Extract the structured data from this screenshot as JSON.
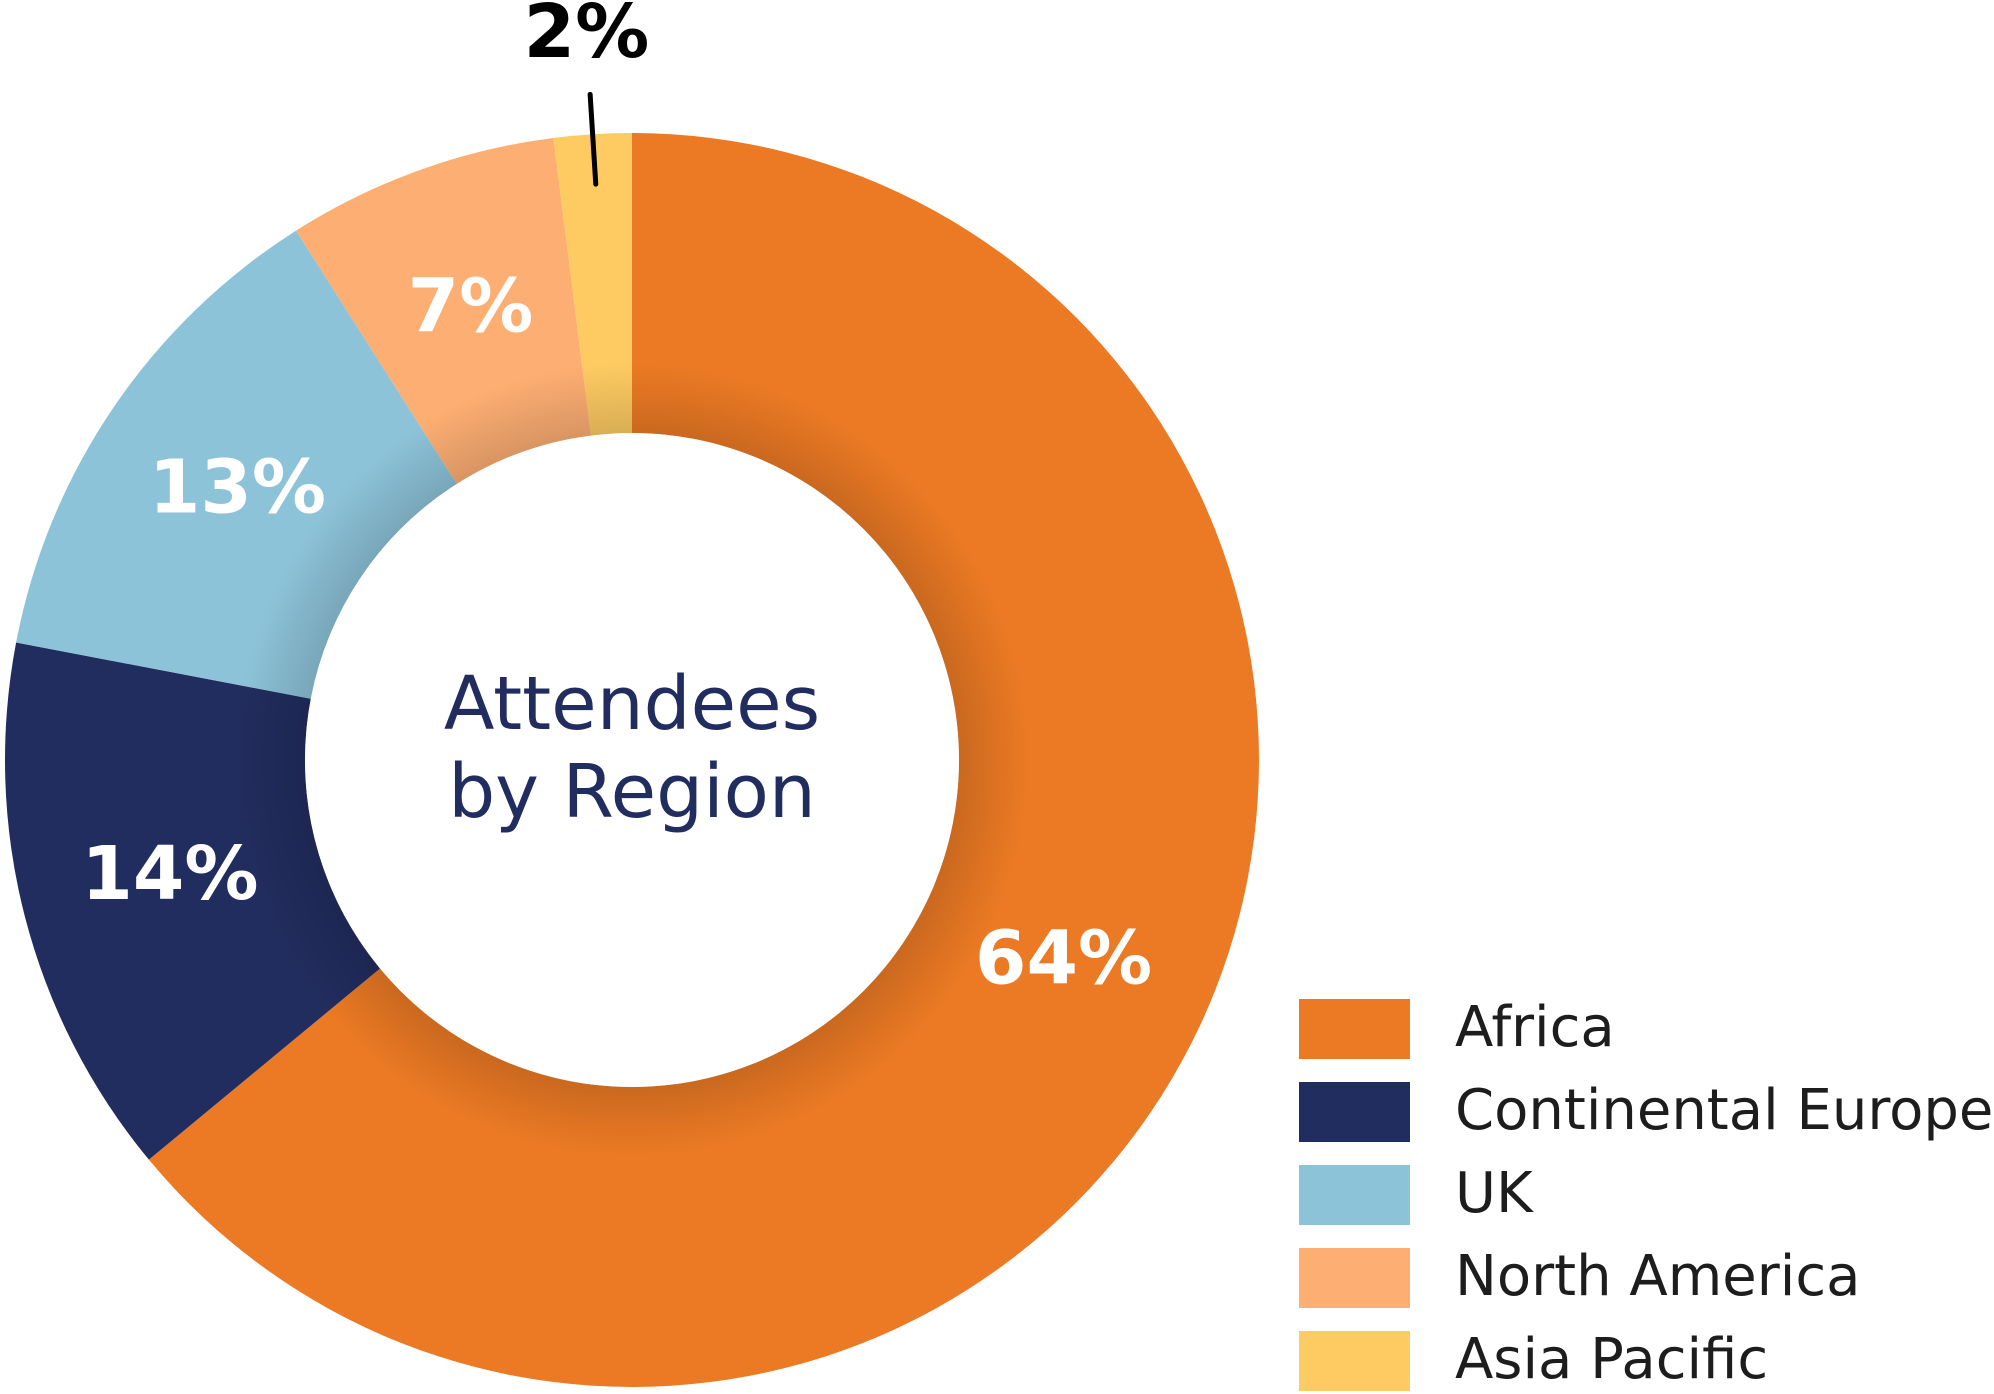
{
  "chart_data": {
    "type": "donut",
    "title": "Attendees by Region",
    "categories": [
      "Africa",
      "Continental Europe",
      "UK",
      "North America",
      "Asia Pacific"
    ],
    "values": [
      64,
      14,
      13,
      7,
      2
    ],
    "value_labels": [
      "64%",
      "14%",
      "13%",
      "7%",
      "2%"
    ],
    "colors": [
      "#ec7a24",
      "#222d5f",
      "#8dc3d9",
      "#fdae72",
      "#fecb62"
    ]
  }
}
